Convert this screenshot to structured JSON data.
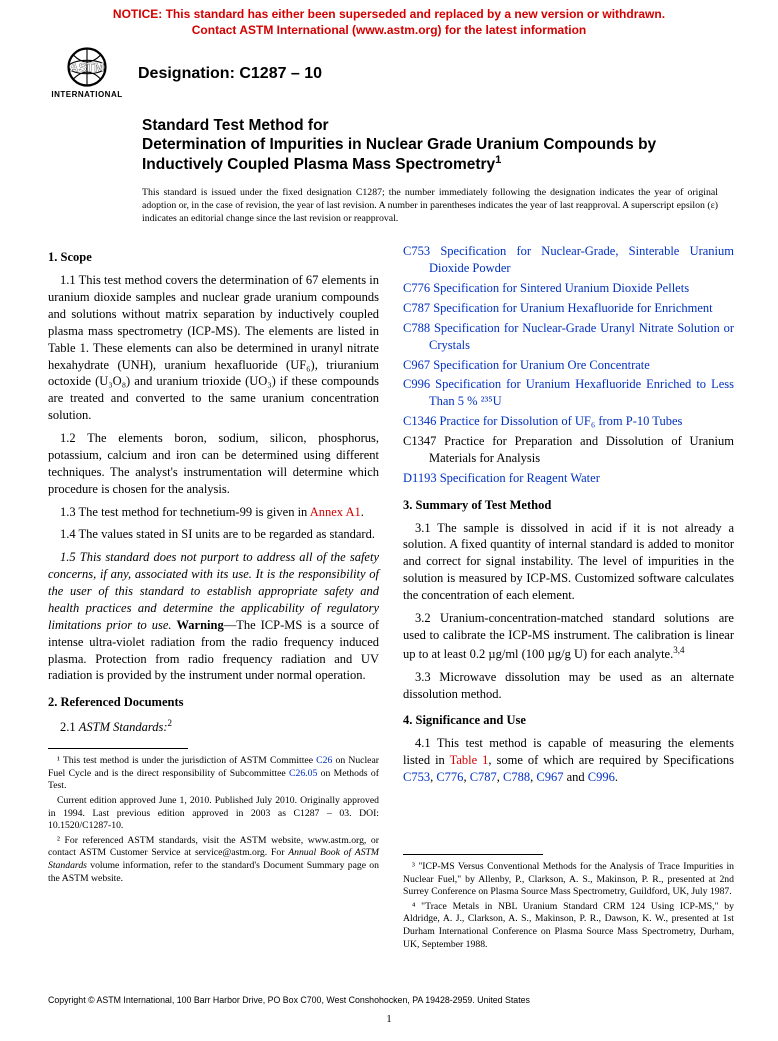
{
  "colors": {
    "link": "#0030c0",
    "red": "#d40000",
    "text": "#000000",
    "bg": "#ffffff"
  },
  "notice": {
    "l1": "NOTICE: This standard has either been superseded and replaced by a new version or withdrawn.",
    "l2": "Contact ASTM International (www.astm.org) for the latest information"
  },
  "logo_text": "INTERNATIONAL",
  "designation": "Designation: C1287 – 10",
  "title_l1": "Standard Test Method for",
  "title_l2": "Determination of Impurities in Nuclear Grade Uranium Compounds by Inductively Coupled Plasma Mass Spectrometry",
  "title_sup": "1",
  "issued": "This standard is issued under the fixed designation C1287; the number immediately following the designation indicates the year of original adoption or, in the case of revision, the year of last revision. A number in parentheses indicates the year of last reapproval. A superscript epsilon (ε) indicates an editorial change since the last revision or reapproval.",
  "s1": {
    "h": "1. Scope",
    "p1": "1.1 This test method covers the determination of 67 elements in uranium dioxide samples and nuclear grade uranium compounds and solutions without matrix separation by inductively coupled plasma mass spectrometry (ICP-MS). The elements are listed in Table 1. These elements can also be determined in uranyl nitrate hexahydrate (UNH), uranium hexafluoride (UF₆), triuranium octoxide (U₃O₈) and uranium trioxide (UO₃) if these compounds are treated and converted to the same uranium concentration solution.",
    "p2": "1.2 The elements boron, sodium, silicon, phosphorus, potassium, calcium and iron can be determined using different techniques. The analyst's instrumentation will determine which procedure is chosen for the analysis.",
    "p3a": "1.3 The test method for technetium-99 is given in ",
    "p3b": "Annex A1",
    "p3c": ".",
    "p4": "1.4 The values stated in SI units are to be regarded as standard.",
    "p5a": "1.5 This standard does not purport to address all of the safety concerns, if any, associated with its use. It is the responsibility of the user of this standard to establish appropriate safety and health practices and determine the applicability of regulatory limitations prior to use. ",
    "p5b": "Warning",
    "p5c": "—The ICP-MS is a source of intense ultra-violet radiation from the radio frequency induced plasma. Protection from radio frequency radiation and UV radiation is provided by the instrument under normal operation."
  },
  "s2": {
    "h": "2. Referenced Documents",
    "sub": "2.1 ",
    "subitalic": "ASTM Standards:",
    "sup": "2"
  },
  "refs": [
    {
      "c": "C753",
      "t": "Specification for Nuclear-Grade, Sinterable Uranium Dioxide Powder",
      "link": true
    },
    {
      "c": "C776",
      "t": "Specification for Sintered Uranium Dioxide Pellets",
      "link": true
    },
    {
      "c": "C787",
      "t": "Specification for Uranium Hexafluoride for Enrichment",
      "link": true
    },
    {
      "c": "C788",
      "t": "Specification for Nuclear-Grade Uranyl Nitrate Solution or Crystals",
      "link": true
    },
    {
      "c": "C967",
      "t": "Specification for Uranium Ore Concentrate",
      "link": true
    },
    {
      "c": "C996",
      "t": "Specification for Uranium Hexafluoride Enriched to Less Than 5 % ²³⁵U",
      "link": true
    },
    {
      "c": "C1346",
      "t": "Practice for Dissolution of UF₆ from P-10 Tubes",
      "link": true
    },
    {
      "c": "C1347",
      "t": "Practice for Preparation and Dissolution of Uranium Materials for Analysis",
      "link": false
    },
    {
      "c": "D1193",
      "t": "Specification for Reagent Water",
      "link": true
    }
  ],
  "s3": {
    "h": "3. Summary of Test Method",
    "p1": "3.1 The sample is dissolved in acid if it is not already a solution. A fixed quantity of internal standard is added to monitor and correct for signal instability. The level of impurities in the solution is measured by ICP-MS. Customized software calculates the concentration of each element.",
    "p2": "3.2 Uranium-concentration-matched standard solutions are used to calibrate the ICP-MS instrument. The calibration is linear up to at least 0.2 µg/ml (100 µg/g U) for each analyte.",
    "p2sup": "3,4",
    "p3": "3.3 Microwave dissolution may be used as an alternate dissolution method."
  },
  "s4": {
    "h": "4. Significance and Use",
    "p1a": "4.1 This test method is capable of measuring the elements listed in ",
    "p1b": "Table 1",
    "p1c": ", some of which are required by Specifications ",
    "codes": [
      "C753",
      "C776",
      "C787",
      "C788",
      "C967",
      "C996"
    ],
    "p1d": " and ",
    "p1e": "."
  },
  "fn1": {
    "a": "¹ This test method is under the jurisdiction of ASTM Committee ",
    "c1": "C26",
    "b": " on Nuclear Fuel Cycle and is the direct responsibility of Subcommittee ",
    "c2": "C26.05",
    "c": " on Methods of Test.",
    "d": "Current edition approved June 1, 2010. Published July 2010. Originally approved in 1994. Last previous edition approved in 2003 as C1287 – 03. DOI: 10.1520/C1287-10.",
    "e": "² For referenced ASTM standards, visit the ASTM website, www.astm.org, or contact ASTM Customer Service at service@astm.org. For ",
    "eit": "Annual Book of ASTM Standards",
    "f": " volume information, refer to the standard's Document Summary page on the ASTM website."
  },
  "fn2": {
    "a": "³ \"ICP-MS Versus Conventional Methods for the Analysis of Trace Impurities in Nuclear Fuel,\" by Allenby, P., Clarkson, A. S., Makinson, P. R., presented at 2nd Surrey Conference on Plasma Source Mass Spectrometry, Guildford, UK, July 1987.",
    "b": "⁴ \"Trace Metals in NBL Uranium Standard CRM 124 Using ICP-MS,\" by Aldridge, A. J., Clarkson, A. S., Makinson, P. R., Dawson, K. W., presented at 1st Durham International Conference on Plasma Source Mass Spectrometry, Durham, UK, September 1988."
  },
  "copyright": "Copyright © ASTM International, 100 Barr Harbor Drive, PO Box C700, West Conshohocken, PA 19428-2959. United States",
  "page": "1"
}
